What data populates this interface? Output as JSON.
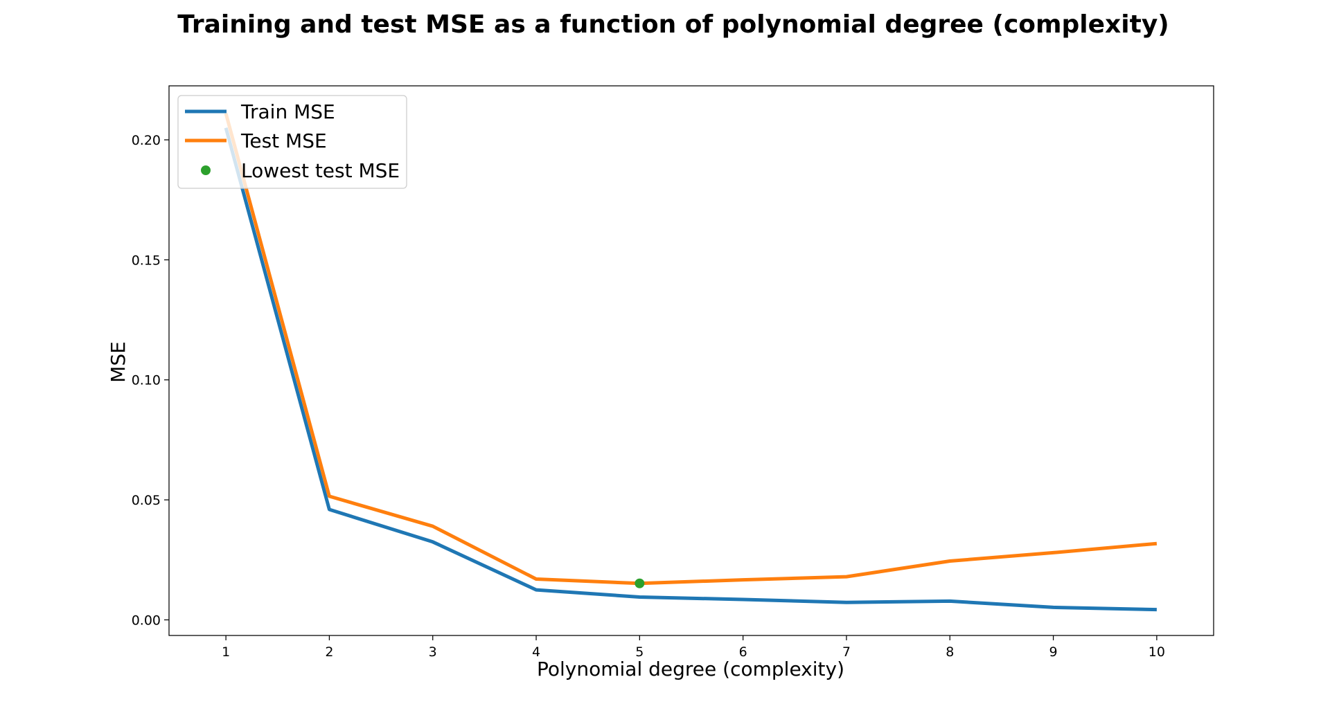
{
  "chart_data": {
    "type": "line",
    "title": "Training and test MSE as a function of polynomial degree (complexity)",
    "xlabel": "Polynomial degree (complexity)",
    "ylabel": "MSE",
    "x": [
      1,
      2,
      3,
      4,
      5,
      6,
      7,
      8,
      9,
      10
    ],
    "xticks": [
      "1",
      "2",
      "3",
      "4",
      "5",
      "6",
      "7",
      "8",
      "9",
      "10"
    ],
    "yticks": [
      "0.00",
      "0.05",
      "0.10",
      "0.15",
      "0.20"
    ],
    "xlim": [
      0.45,
      10.55
    ],
    "ylim": [
      -0.0065,
      0.2225
    ],
    "grid": false,
    "legend_position": "top-left",
    "series": [
      {
        "name": "Train MSE",
        "color": "#1f77b4",
        "values": [
          0.205,
          0.046,
          0.0325,
          0.0125,
          0.0095,
          0.0085,
          0.0073,
          0.0078,
          0.0052,
          0.0043
        ]
      },
      {
        "name": "Test MSE",
        "color": "#ff7f0e",
        "values": [
          0.211,
          0.0515,
          0.039,
          0.017,
          0.0152,
          0.0167,
          0.018,
          0.0245,
          0.028,
          0.0318
        ]
      }
    ],
    "highlight": {
      "name": "Lowest test MSE",
      "color": "#2ca02c",
      "x": 5,
      "y": 0.0152
    }
  }
}
